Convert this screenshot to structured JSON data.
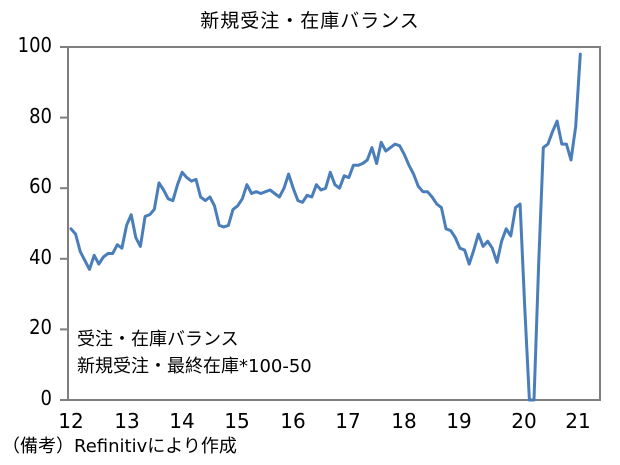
{
  "chart_data": {
    "type": "line",
    "title": "新規受注・在庫バランス",
    "xlabel": "",
    "ylabel": "",
    "ylim": [
      0,
      100
    ],
    "yticks": [
      0,
      20,
      40,
      60,
      80,
      100
    ],
    "xtick_labels": [
      "12",
      "13",
      "14",
      "15",
      "16",
      "17",
      "18",
      "19",
      "20",
      "21"
    ],
    "grid": false,
    "legend": null,
    "annotation_lines": [
      "受注・在庫バランス",
      "新規受注・最終在庫*100-50"
    ],
    "source_note": "（備考）Refinitivにより作成",
    "line_color": "#4a7ebb",
    "x_start": "2012-01",
    "x_frequency": "monthly",
    "series": [
      {
        "name": "受注・在庫バランス",
        "values": [
          48.5,
          47.0,
          42.0,
          39.5,
          37.0,
          41.0,
          38.5,
          40.5,
          41.5,
          41.5,
          44.0,
          43.0,
          49.5,
          52.5,
          46.0,
          43.5,
          52.0,
          52.5,
          54.0,
          61.5,
          59.5,
          57.0,
          56.5,
          61.0,
          64.5,
          63.0,
          62.0,
          62.5,
          57.5,
          56.5,
          57.5,
          55.0,
          49.5,
          49.0,
          49.5,
          54.0,
          55.0,
          57.0,
          61.0,
          58.5,
          59.0,
          58.5,
          59.0,
          59.5,
          58.5,
          57.5,
          60.0,
          64.0,
          60.0,
          56.5,
          56.0,
          58.0,
          57.5,
          61.0,
          59.5,
          60.0,
          64.5,
          61.0,
          60.0,
          63.5,
          63.0,
          66.5,
          66.5,
          67.0,
          68.0,
          71.5,
          67.0,
          73.0,
          70.5,
          71.5,
          72.5,
          72.0,
          69.5,
          66.5,
          64.0,
          60.5,
          59.0,
          59.0,
          57.5,
          55.5,
          54.5,
          48.5,
          48.0,
          46.0,
          43.0,
          42.5,
          38.5,
          42.5,
          47.0,
          43.5,
          45.0,
          43.0,
          39.0,
          45.0,
          48.5,
          46.5,
          54.5,
          55.5,
          26.5,
          0.0,
          0.0,
          38.0,
          71.5,
          72.5,
          76.0,
          79.0,
          72.5,
          72.5,
          68.0,
          77.5,
          98.0
        ]
      }
    ]
  },
  "labels": {
    "y": [
      "100",
      "80",
      "60",
      "40",
      "20",
      "0"
    ],
    "x": [
      "12",
      "13",
      "14",
      "15",
      "16",
      "17",
      "18",
      "19",
      "20",
      "21"
    ]
  }
}
